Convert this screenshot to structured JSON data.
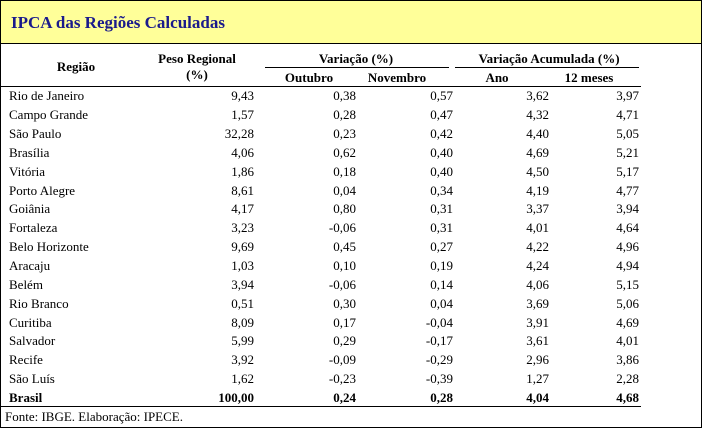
{
  "title": "IPCA das Regiões Calculadas",
  "headers": {
    "regiao": "Região",
    "peso_line1": "Peso Regional",
    "peso_line2": "(%)",
    "variacao": "Variação (%)",
    "outubro": "Outubro",
    "novembro": "Novembro",
    "acumulada": "Variação Acumulada (%)",
    "ano": "Ano",
    "meses12": "12 meses"
  },
  "rows": [
    {
      "regiao": "Rio de Janeiro",
      "peso": "9,43",
      "outubro": "0,38",
      "novembro": "0,57",
      "ano": "3,62",
      "meses12": "3,97"
    },
    {
      "regiao": "Campo Grande",
      "peso": "1,57",
      "outubro": "0,28",
      "novembro": "0,47",
      "ano": "4,32",
      "meses12": "4,71"
    },
    {
      "regiao": "São Paulo",
      "peso": "32,28",
      "outubro": "0,23",
      "novembro": "0,42",
      "ano": "4,40",
      "meses12": "5,05"
    },
    {
      "regiao": "Brasília",
      "peso": "4,06",
      "outubro": "0,62",
      "novembro": "0,40",
      "ano": "4,69",
      "meses12": "5,21"
    },
    {
      "regiao": "Vitória",
      "peso": "1,86",
      "outubro": "0,18",
      "novembro": "0,40",
      "ano": "4,50",
      "meses12": "5,17"
    },
    {
      "regiao": "Porto Alegre",
      "peso": "8,61",
      "outubro": "0,04",
      "novembro": "0,34",
      "ano": "4,19",
      "meses12": "4,77"
    },
    {
      "regiao": "Goiânia",
      "peso": "4,17",
      "outubro": "0,80",
      "novembro": "0,31",
      "ano": "3,37",
      "meses12": "3,94"
    },
    {
      "regiao": "Fortaleza",
      "peso": "3,23",
      "outubro": "-0,06",
      "novembro": "0,31",
      "ano": "4,01",
      "meses12": "4,64"
    },
    {
      "regiao": "Belo Horizonte",
      "peso": "9,69",
      "outubro": "0,45",
      "novembro": "0,27",
      "ano": "4,22",
      "meses12": "4,96"
    },
    {
      "regiao": "Aracaju",
      "peso": "1,03",
      "outubro": "0,10",
      "novembro": "0,19",
      "ano": "4,24",
      "meses12": "4,94"
    },
    {
      "regiao": "Belém",
      "peso": "3,94",
      "outubro": "-0,06",
      "novembro": "0,14",
      "ano": "4,06",
      "meses12": "5,15"
    },
    {
      "regiao": "Rio Branco",
      "peso": "0,51",
      "outubro": "0,30",
      "novembro": "0,04",
      "ano": "3,69",
      "meses12": "5,06"
    },
    {
      "regiao": "Curitiba",
      "peso": "8,09",
      "outubro": "0,17",
      "novembro": "-0,04",
      "ano": "3,91",
      "meses12": "4,69"
    },
    {
      "regiao": "Salvador",
      "peso": "5,99",
      "outubro": "0,29",
      "novembro": "-0,17",
      "ano": "3,61",
      "meses12": "4,01"
    },
    {
      "regiao": "Recife",
      "peso": "3,92",
      "outubro": "-0,09",
      "novembro": "-0,29",
      "ano": "2,96",
      "meses12": "3,86"
    },
    {
      "regiao": "São Luís",
      "peso": "1,62",
      "outubro": "-0,23",
      "novembro": "-0,39",
      "ano": "1,27",
      "meses12": "2,28"
    }
  ],
  "total": {
    "regiao": "Brasil",
    "peso": "100,00",
    "outubro": "0,24",
    "novembro": "0,28",
    "ano": "4,04",
    "meses12": "4,68"
  },
  "source": "Fonte: IBGE. Elaboração: IPECE."
}
